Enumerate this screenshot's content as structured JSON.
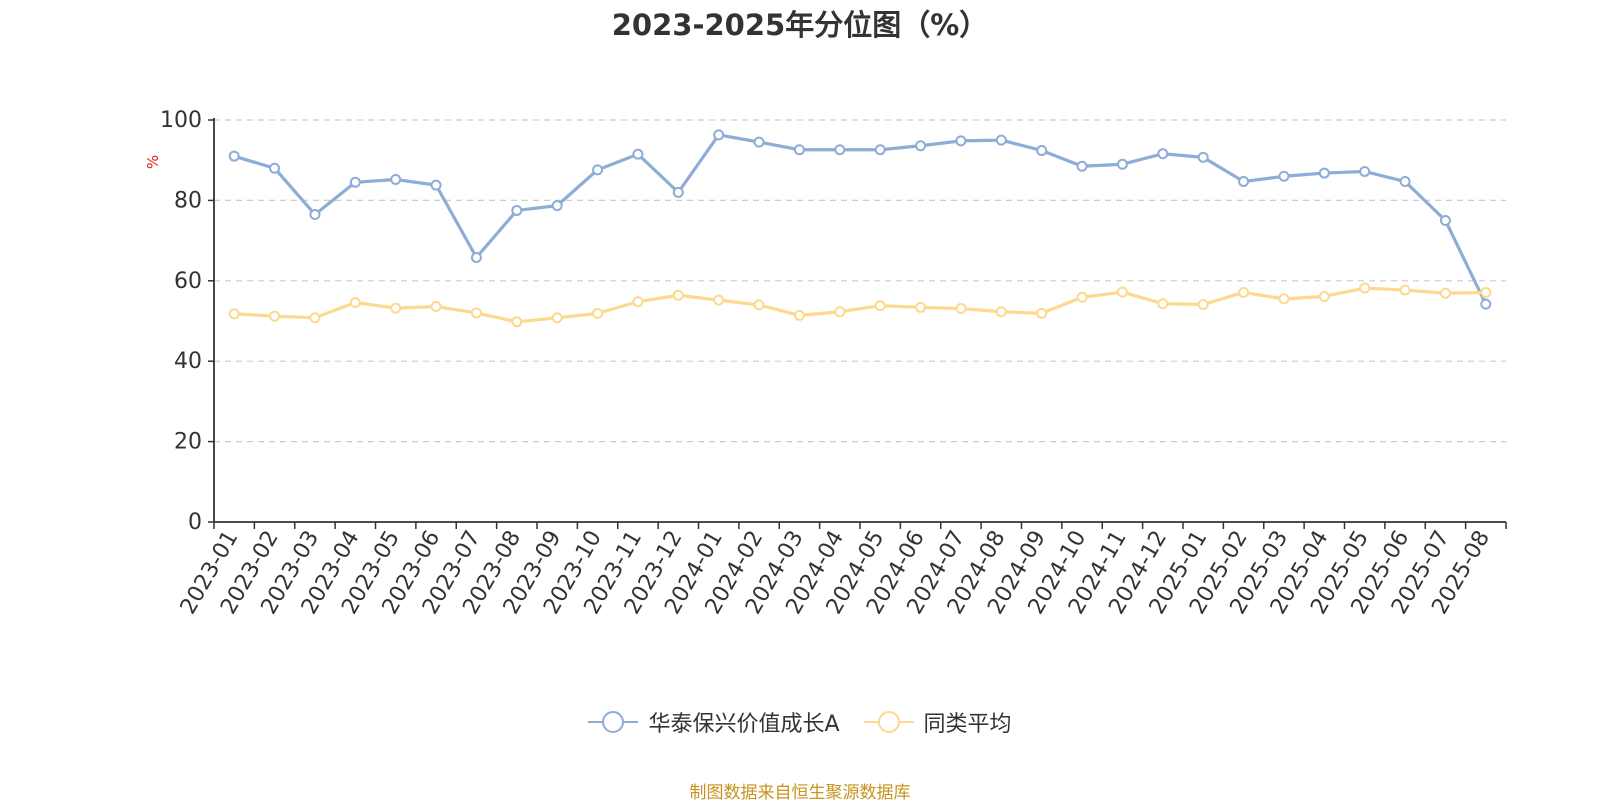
{
  "chart_data": {
    "type": "line",
    "title": "2023-2025年分位图（%）",
    "ylabel": "%",
    "ylim": [
      0,
      100
    ],
    "yticks": [
      0,
      20,
      40,
      60,
      80,
      100
    ],
    "grid": true,
    "legend_position": "bottom-center",
    "categories": [
      "2023-01",
      "2023-02",
      "2023-03",
      "2023-04",
      "2023-05",
      "2023-06",
      "2023-07",
      "2023-08",
      "2023-09",
      "2023-10",
      "2023-11",
      "2023-12",
      "2024-01",
      "2024-02",
      "2024-03",
      "2024-04",
      "2024-05",
      "2024-06",
      "2024-07",
      "2024-08",
      "2024-09",
      "2024-10",
      "2024-11",
      "2024-12",
      "2025-01",
      "2025-02",
      "2025-03",
      "2025-04",
      "2025-05",
      "2025-06",
      "2025-07",
      "2025-08"
    ],
    "series": [
      {
        "name": "华泰保兴价值成长A",
        "color": "#8eacd8",
        "values": [
          91.0,
          88.0,
          76.5,
          84.5,
          85.2,
          83.8,
          65.8,
          77.5,
          78.7,
          87.6,
          91.5,
          82.0,
          96.3,
          94.5,
          92.6,
          92.6,
          92.6,
          93.6,
          94.8,
          95.0,
          92.4,
          88.5,
          89.0,
          91.6,
          90.7,
          84.7,
          86.0,
          86.8,
          87.2,
          84.7,
          75.0,
          54.2
        ]
      },
      {
        "name": "同类平均",
        "color": "#fdd88f",
        "values": [
          51.8,
          51.2,
          50.8,
          54.6,
          53.2,
          53.6,
          52.0,
          49.8,
          50.8,
          51.9,
          54.8,
          56.4,
          55.2,
          54.0,
          51.4,
          52.3,
          53.8,
          53.4,
          53.1,
          52.3,
          51.9,
          55.9,
          57.2,
          54.3,
          54.1,
          57.1,
          55.5,
          56.1,
          58.2,
          57.7,
          56.9,
          57.1
        ]
      }
    ]
  },
  "footer": {
    "source": "制图数据来自恒生聚源数据库"
  }
}
